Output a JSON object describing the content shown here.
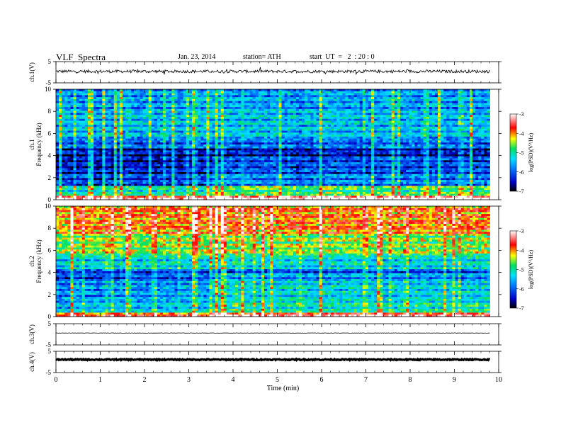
{
  "header": {
    "title": "VLF  Spectra",
    "date": "Jan. 23, 2014",
    "station": "station= ATH",
    "start_ut": "start  UT  =   2  : 20 : 0"
  },
  "chart_data": [
    {
      "id": "ch1-waveform",
      "type": "line",
      "ylabel": "ch.1(V)",
      "ylim": [
        -5,
        5
      ],
      "yticks": [
        "5",
        "-5"
      ],
      "baseline": 0.4,
      "noise_amplitude": 0.7,
      "color": "#000000"
    },
    {
      "id": "ch1-spectrogram",
      "type": "heatmap",
      "ylabel": "ch.1\nFrequency  (kHz)",
      "ylim": [
        0,
        10
      ],
      "yticks": [
        "0",
        "2",
        "4",
        "6",
        "8",
        "10"
      ],
      "regime_change_min": 3.5,
      "bands": [
        {
          "from": 0,
          "to": 0.3,
          "level": -3.2
        },
        {
          "from": 0.3,
          "to": 1.3,
          "level": -5.0
        },
        {
          "from": 1.3,
          "to": 2.4,
          "level": -6.0
        },
        {
          "from": 2.4,
          "to": 4.6,
          "level": -6.3
        },
        {
          "from": 4.6,
          "to": 5.6,
          "level": -5.8
        },
        {
          "from": 5.6,
          "to": 8.0,
          "level": -5.3
        },
        {
          "from": 8.0,
          "to": 10.0,
          "level": -5.5
        }
      ],
      "colorbar": {
        "label": "log(PSD)(V²/Hz)",
        "ticks": [
          "-3",
          "-4",
          "-5",
          "-6",
          "-7"
        ],
        "range": [
          -7,
          -3
        ]
      }
    },
    {
      "id": "ch2-spectrogram",
      "type": "heatmap",
      "ylabel": "ch.2\nFrequency  (kHz)",
      "ylim": [
        0,
        10
      ],
      "yticks": [
        "0",
        "2",
        "4",
        "6",
        "8",
        "10"
      ],
      "regime_change_min": 3.5,
      "bands": [
        {
          "from": 0,
          "to": 0.3,
          "level": -3.6
        },
        {
          "from": 0.3,
          "to": 1.5,
          "level": -5.3
        },
        {
          "from": 1.5,
          "to": 3.2,
          "level": -5.5
        },
        {
          "from": 3.2,
          "to": 4.3,
          "level": -5.9
        },
        {
          "from": 4.3,
          "to": 5.5,
          "level": -5.1
        },
        {
          "from": 5.5,
          "to": 7.5,
          "level": -4.4
        },
        {
          "from": 7.5,
          "to": 10.0,
          "level": -3.8
        }
      ],
      "colorbar": {
        "label": "log(PSD)(V²/Hz)",
        "ticks": [
          "-3",
          "-4",
          "-5",
          "-6",
          "-7"
        ],
        "range": [
          -7,
          -3
        ]
      }
    },
    {
      "id": "ch3-waveform",
      "type": "line",
      "ylabel": "ch.3(V)",
      "ylim": [
        -5,
        5
      ],
      "yticks": [
        "5",
        "-5"
      ],
      "baseline": 0.6,
      "noise_amplitude": 0.08,
      "color": "#000000"
    },
    {
      "id": "ch4-waveform",
      "type": "line",
      "ylabel": "ch.4(V)",
      "ylim": [
        -5,
        5
      ],
      "yticks": [
        "5",
        "-5"
      ],
      "baseline": 1.1,
      "noise_amplitude": 0.25,
      "color": "#000000"
    }
  ],
  "x_axis": {
    "label": "Time  (min)",
    "range": [
      0,
      10
    ],
    "data_end": 9.8,
    "ticks": [
      "0",
      "1",
      "2",
      "3",
      "4",
      "5",
      "6",
      "7",
      "8",
      "9",
      "10"
    ]
  }
}
